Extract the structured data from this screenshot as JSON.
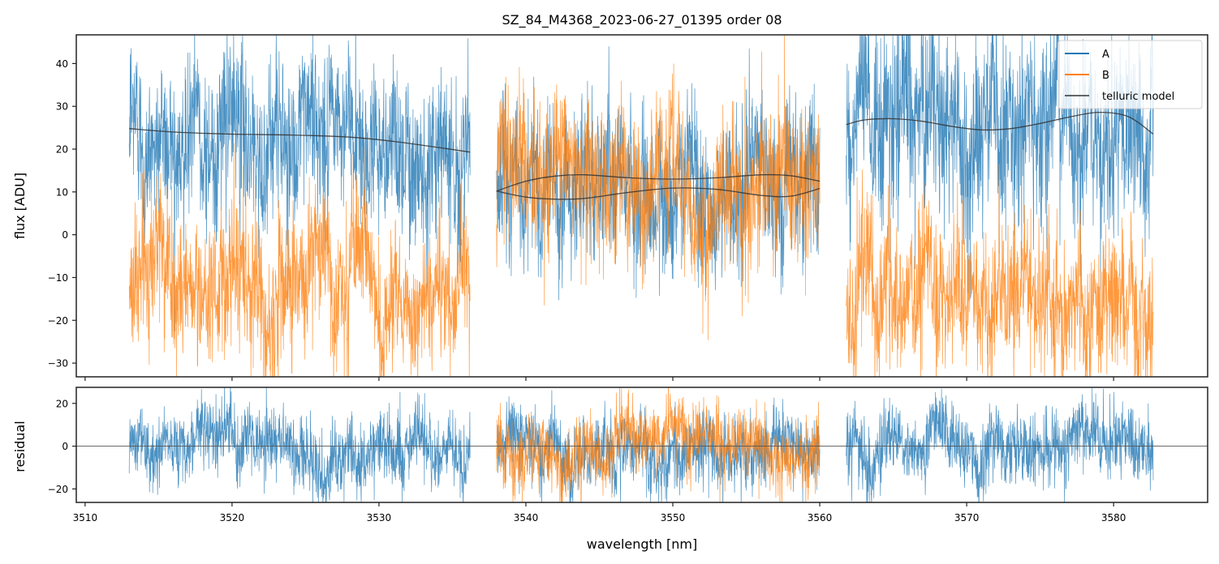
{
  "chart_data": [
    {
      "type": "line",
      "panel": "top",
      "title": "SZ_84_M4368_2023-06-27_01395  order 08",
      "xlabel": "",
      "ylabel": "flux [ADU]",
      "xlim": [
        3509.4,
        3586.4
      ],
      "ylim": [
        -33.2,
        46.7
      ],
      "yticks": [
        40,
        30,
        20,
        10,
        0,
        -10,
        -20,
        -30
      ],
      "ytick_labels": [
        "40",
        "30",
        "20",
        "10",
        "0",
        "−10",
        "−20",
        "−30"
      ],
      "xticks": [
        3510,
        3520,
        3530,
        3540,
        3550,
        3560,
        3570,
        3580
      ],
      "grid": false,
      "legend": {
        "placement": "top-right",
        "entries": [
          "A",
          "B",
          "telluric model"
        ]
      },
      "series": [
        {
          "name": "A",
          "color": "#1f77b4",
          "kind": "noisy-spectrum",
          "segments": [
            {
              "x_range": [
                3513.0,
                3536.2
              ],
              "mean": 23.5,
              "noise_sd": 9.0
            },
            {
              "x_range": [
                3538.0,
                3560.0
              ],
              "mean": 11.5,
              "noise_sd": 8.5
            },
            {
              "x_range": [
                3561.8,
                3582.7
              ],
              "mean": 26.5,
              "noise_sd": 10.0
            }
          ]
        },
        {
          "name": "B",
          "color": "#ff7f0e",
          "kind": "noisy-spectrum",
          "segments": [
            {
              "x_range": [
                3513.0,
                3536.2
              ],
              "mean": -10.5,
              "noise_sd": 8.0
            },
            {
              "x_range": [
                3538.0,
                3560.0
              ],
              "mean": 12.0,
              "noise_sd": 8.5
            },
            {
              "x_range": [
                3561.8,
                3582.7
              ],
              "mean": -12.5,
              "noise_sd": 8.0
            }
          ]
        },
        {
          "name": "telluric model",
          "color": "#333333",
          "kind": "smooth",
          "curves": [
            {
              "x": [
                3513.0,
                3516,
                3520,
                3524,
                3528,
                3531,
                3534,
                3536.2
              ],
              "y": [
                24.8,
                24.0,
                23.5,
                23.3,
                22.8,
                21.8,
                20.4,
                19.3
              ]
            },
            {
              "x": [
                3538.0,
                3540,
                3542,
                3544,
                3547,
                3550,
                3553,
                3556,
                3558,
                3560
              ],
              "y": [
                10.2,
                12.5,
                13.7,
                14.0,
                13.3,
                13.0,
                13.3,
                14.0,
                13.8,
                12.5
              ]
            },
            {
              "x": [
                3538.0,
                3540,
                3542,
                3544,
                3547,
                3550,
                3553,
                3556,
                3558,
                3560
              ],
              "y": [
                10.2,
                8.8,
                8.3,
                8.5,
                9.9,
                10.9,
                10.6,
                9.2,
                9.0,
                10.8
              ]
            },
            {
              "x": [
                3561.8,
                3563,
                3565,
                3567,
                3569,
                3571,
                3573,
                3575,
                3577,
                3579,
                3581,
                3582.7
              ],
              "y": [
                25.7,
                26.8,
                27.1,
                26.5,
                25.3,
                24.5,
                24.8,
                26.0,
                27.5,
                28.6,
                27.6,
                23.5
              ]
            }
          ]
        }
      ]
    },
    {
      "type": "line",
      "panel": "bottom",
      "title": "",
      "xlabel": "wavelength [nm]",
      "ylabel": "residual",
      "xlim": [
        3509.4,
        3586.4
      ],
      "ylim": [
        -26.3,
        27.5
      ],
      "yticks": [
        20,
        0,
        -20
      ],
      "ytick_labels": [
        "20",
        "0",
        "−20"
      ],
      "xticks": [
        3510,
        3520,
        3530,
        3540,
        3550,
        3560,
        3570,
        3580
      ],
      "xtick_labels": [
        "3510",
        "3520",
        "3530",
        "3540",
        "3550",
        "3560",
        "3570",
        "3580"
      ],
      "grid": false,
      "reference_line": {
        "y": 0,
        "color": "#555555"
      },
      "series": [
        {
          "name": "A",
          "color": "#1f77b4",
          "kind": "noisy-spectrum",
          "segments": [
            {
              "x_range": [
                3513.0,
                3536.2
              ],
              "mean": 0,
              "noise_sd": 8.0
            },
            {
              "x_range": [
                3538.0,
                3560.0
              ],
              "mean": 0,
              "noise_sd": 8.0
            },
            {
              "x_range": [
                3561.8,
                3582.7
              ],
              "mean": 0,
              "noise_sd": 8.0
            }
          ]
        },
        {
          "name": "B",
          "color": "#ff7f0e",
          "kind": "noisy-spectrum",
          "segments": [
            {
              "x_range": [
                3538.0,
                3560.0
              ],
              "mean": 0,
              "noise_sd": 8.0
            }
          ]
        }
      ]
    }
  ]
}
